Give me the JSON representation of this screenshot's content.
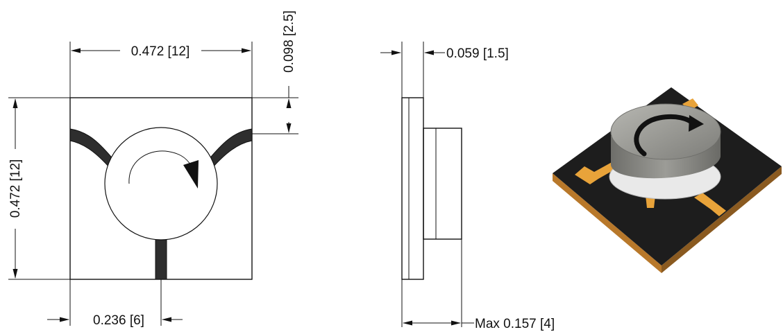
{
  "front_view": {
    "width_label": "0.472 [12]",
    "height_label": "0.472 [12]",
    "port_offset_label": "0.098 [2.5]",
    "center_label": "0.236 [6]"
  },
  "side_view": {
    "substrate_label": "0.059 [1.5]",
    "max_height_label": "Max 0.157 [4]"
  },
  "photo": {
    "subject": "circulator-3d-render"
  },
  "colors": {
    "line": "#111111",
    "trace": "#333333",
    "substrate": "#1b1b1b",
    "gold": "#e8a33a",
    "ferrite": "#8e8e8a"
  }
}
